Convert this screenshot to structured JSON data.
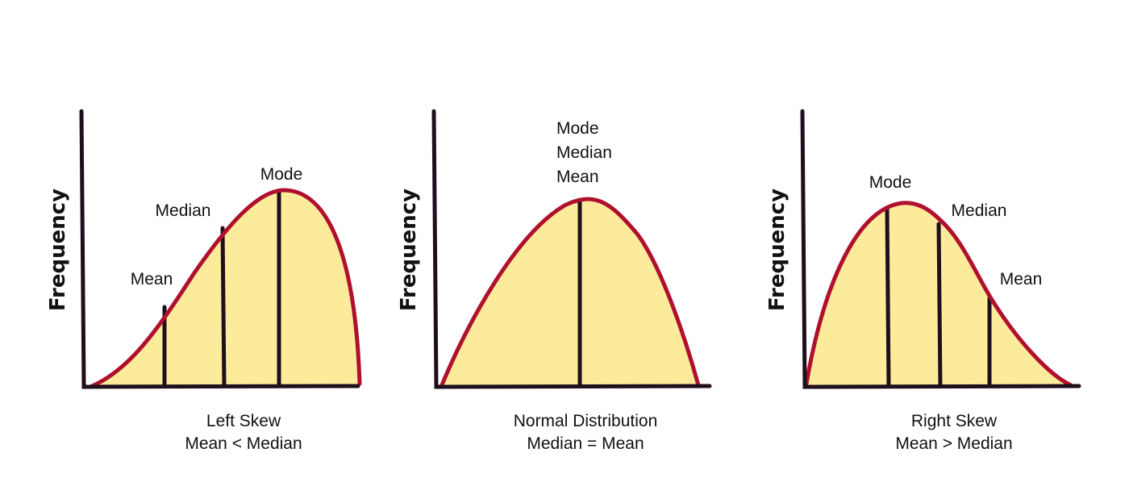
{
  "colors": {
    "fill": "#fdeb9c",
    "curve": "#b0102e",
    "axis": "#1e0f1c"
  },
  "panels": [
    {
      "y_label": "Frequency",
      "caption": [
        "Left Skew",
        "Mean < Median"
      ],
      "markers": [
        "Mean",
        "Median",
        "Mode"
      ]
    },
    {
      "y_label": "Frequency",
      "caption": [
        "Normal Distribution",
        "Median = Mean"
      ],
      "markers": [
        "Mode",
        "Median",
        "Mean"
      ]
    },
    {
      "y_label": "Frequency",
      "caption": [
        "Right Skew",
        "Mean > Median"
      ],
      "markers": [
        "Mode",
        "Median",
        "Mean"
      ]
    }
  ]
}
